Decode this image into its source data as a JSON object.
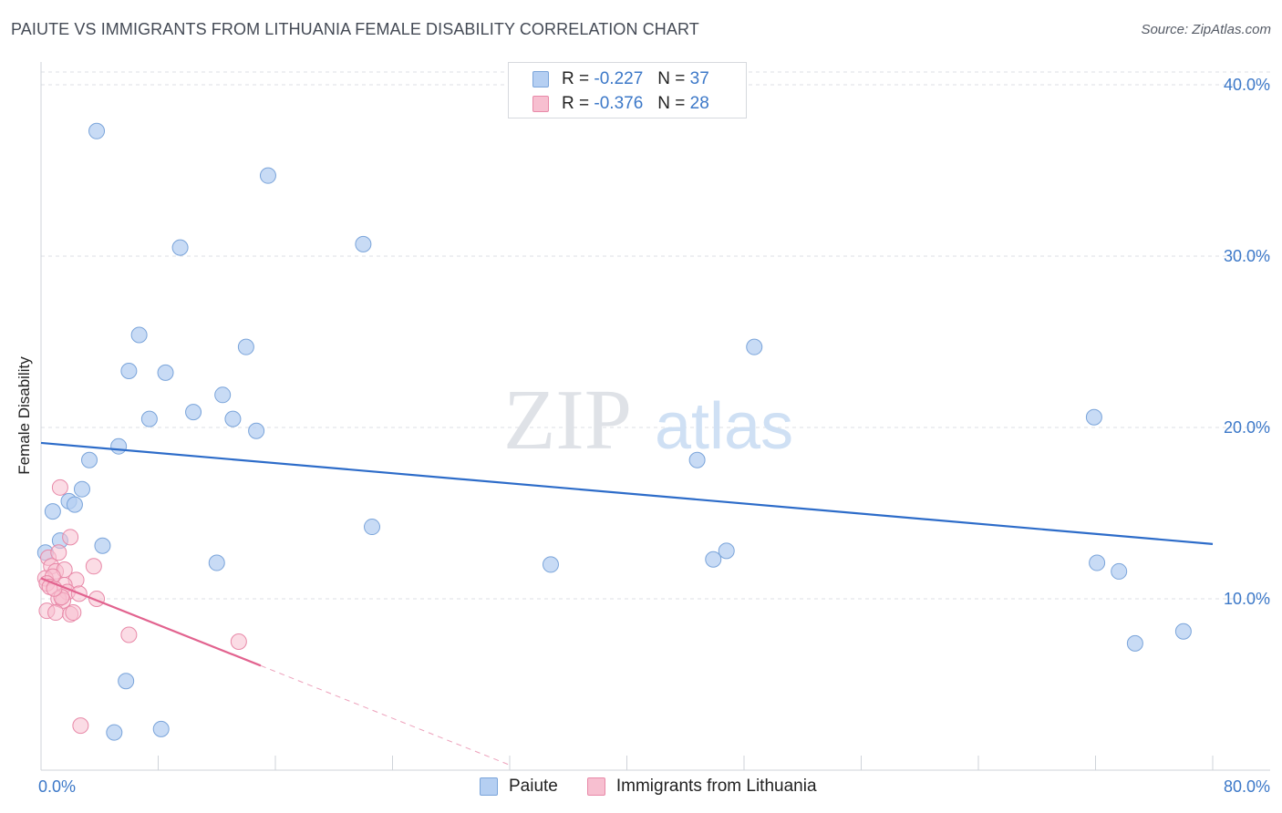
{
  "header": {
    "title": "PAIUTE VS IMMIGRANTS FROM LITHUANIA FEMALE DISABILITY CORRELATION CHART",
    "source": "Source: ZipAtlas.com"
  },
  "watermark": {
    "zip": "ZIP",
    "atlas": "atlas"
  },
  "legend": {
    "rows": [
      {
        "r_label": "R = ",
        "r_value": "-0.227",
        "n_label": "N = ",
        "n_value": "37"
      },
      {
        "r_label": "R = ",
        "r_value": "-0.376",
        "n_label": "N = ",
        "n_value": "28"
      }
    ],
    "bottom": [
      "Paiute",
      "Immigrants from Lithuania"
    ]
  },
  "colors": {
    "paiute_fill": "#b5cff2",
    "paiute_stroke": "#7aa4da",
    "paiute_line": "#2d6cc9",
    "lith_fill": "#f7bfd0",
    "lith_stroke": "#e889a8",
    "lith_line": "#e2638f",
    "axis_text": "#3c78c8",
    "grid": "#dcdfe4"
  },
  "chart_data": {
    "type": "scatter",
    "title": "PAIUTE VS IMMIGRANTS FROM LITHUANIA FEMALE DISABILITY CORRELATION CHART",
    "xlabel": "",
    "ylabel": "Female Disability",
    "xlim": [
      0,
      80
    ],
    "ylim": [
      0,
      40.8
    ],
    "x_tick_labels": [
      "0.0%",
      "80.0%"
    ],
    "y_ticks": [
      10,
      20,
      30,
      40
    ],
    "y_tick_labels": [
      "10.0%",
      "20.0%",
      "30.0%",
      "40.0%"
    ],
    "grid": true,
    "series": [
      {
        "name": "Paiute",
        "points": [
          [
            3.8,
            37.3
          ],
          [
            15.5,
            34.7
          ],
          [
            9.5,
            30.5
          ],
          [
            22.0,
            30.7
          ],
          [
            6.7,
            25.4
          ],
          [
            14.0,
            24.7
          ],
          [
            6.0,
            23.3
          ],
          [
            8.5,
            23.2
          ],
          [
            12.4,
            21.9
          ],
          [
            7.4,
            20.5
          ],
          [
            10.4,
            20.9
          ],
          [
            13.1,
            20.5
          ],
          [
            14.7,
            19.8
          ],
          [
            5.3,
            18.9
          ],
          [
            3.3,
            18.1
          ],
          [
            2.8,
            16.4
          ],
          [
            1.9,
            15.7
          ],
          [
            0.8,
            15.1
          ],
          [
            2.3,
            15.5
          ],
          [
            1.3,
            13.4
          ],
          [
            4.2,
            13.1
          ],
          [
            0.3,
            12.7
          ],
          [
            22.6,
            14.2
          ],
          [
            12.0,
            12.1
          ],
          [
            34.8,
            12.0
          ],
          [
            45.9,
            12.3
          ],
          [
            46.8,
            12.8
          ],
          [
            48.7,
            24.7
          ],
          [
            44.8,
            18.1
          ],
          [
            71.9,
            20.6
          ],
          [
            72.1,
            12.1
          ],
          [
            73.6,
            11.6
          ],
          [
            74.7,
            7.4
          ],
          [
            78.0,
            8.1
          ],
          [
            5.8,
            5.2
          ],
          [
            5.0,
            2.2
          ],
          [
            8.2,
            2.4
          ]
        ],
        "trend": {
          "x": [
            0,
            80
          ],
          "y": [
            19.1,
            13.2
          ]
        }
      },
      {
        "name": "Immigrants from Lithuania",
        "points": [
          [
            1.3,
            16.5
          ],
          [
            2.0,
            13.6
          ],
          [
            0.5,
            12.4
          ],
          [
            1.2,
            12.7
          ],
          [
            0.7,
            11.9
          ],
          [
            1.0,
            11.6
          ],
          [
            1.6,
            11.7
          ],
          [
            3.6,
            11.9
          ],
          [
            0.3,
            11.2
          ],
          [
            0.8,
            11.3
          ],
          [
            2.4,
            11.1
          ],
          [
            0.4,
            10.9
          ],
          [
            0.6,
            10.7
          ],
          [
            1.6,
            10.8
          ],
          [
            1.8,
            10.4
          ],
          [
            1.2,
            10.0
          ],
          [
            1.5,
            9.9
          ],
          [
            3.8,
            10.0
          ],
          [
            0.4,
            9.3
          ],
          [
            1.0,
            9.2
          ],
          [
            2.0,
            9.1
          ],
          [
            2.2,
            9.2
          ],
          [
            6.0,
            7.9
          ],
          [
            13.5,
            7.5
          ],
          [
            2.7,
            2.6
          ],
          [
            1.4,
            10.1
          ],
          [
            0.9,
            10.6
          ],
          [
            2.6,
            10.3
          ]
        ],
        "trend": {
          "x": [
            0,
            15
          ],
          "y": [
            11.2,
            6.1
          ]
        },
        "trend_extension": {
          "x": [
            15,
            32
          ],
          "y": [
            6.1,
            0.3
          ]
        }
      }
    ]
  }
}
